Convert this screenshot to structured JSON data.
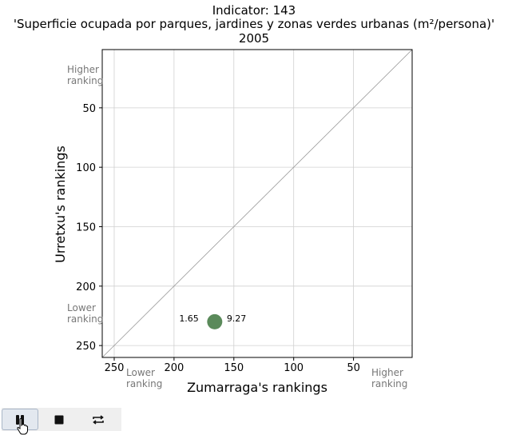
{
  "titles": {
    "line1": "Indicator: 143",
    "line2": "'Superficie ocupada por parques, jardines y zonas verdes urbanas (m²/persona)'",
    "line3": "2005"
  },
  "corner_labels": {
    "y_top": "Higher ranking",
    "y_bottom": "Lower ranking",
    "x_left": "Lower ranking",
    "x_right": "Higher ranking"
  },
  "chart_data": {
    "type": "scatter",
    "xlabel": "Zumarraga's rankings",
    "ylabel": "Urretxu's rankings",
    "x_inverted": true,
    "y_inverted": true,
    "xlim": [
      260,
      1
    ],
    "ylim": [
      260,
      1
    ],
    "x_ticks": [
      250,
      200,
      150,
      100,
      50
    ],
    "y_ticks": [
      50,
      100,
      150,
      200,
      250
    ],
    "grid": true,
    "diagonal": true,
    "points": [
      {
        "x": 166,
        "y": 230,
        "x_label": "1.65",
        "y_label": "9.27",
        "color": "#5a8a5a"
      }
    ]
  },
  "toolbar": {
    "buttons": [
      {
        "icon": "pause-icon",
        "active": true
      },
      {
        "icon": "stop-icon",
        "active": false
      },
      {
        "icon": "repeat-icon",
        "active": false
      }
    ]
  }
}
